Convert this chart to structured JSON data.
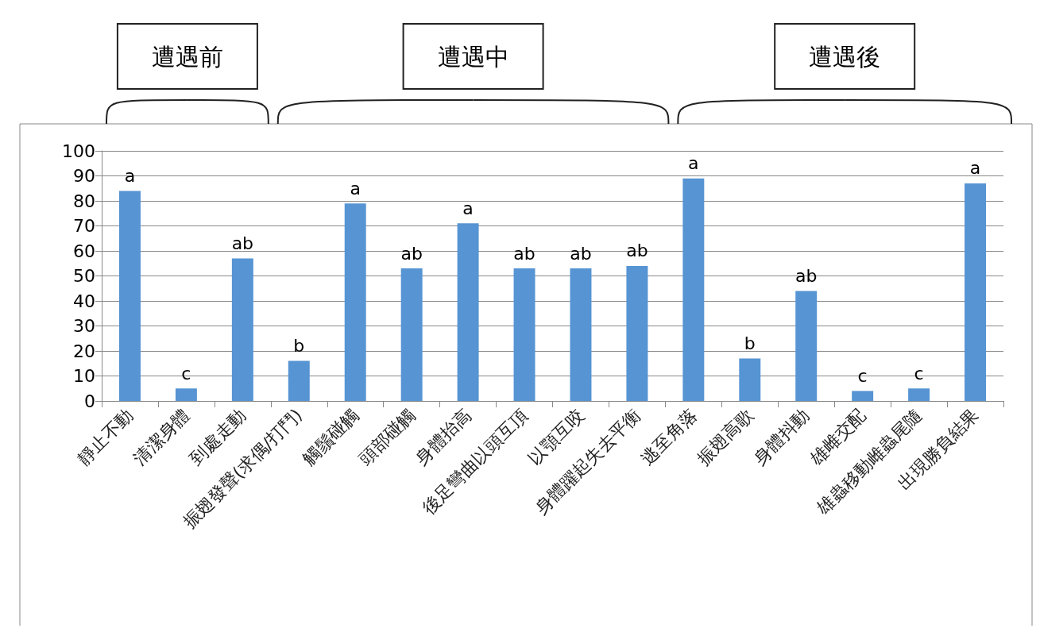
{
  "chart_data": {
    "type": "bar",
    "categories": [
      "靜止不動",
      "清潔身體",
      "到處走動",
      "振翅發聲(求偶/打鬥)",
      "觸鬚碰觸",
      "頭部碰觸",
      "身體抬高",
      "後足彎曲以頭互頂",
      "以顎互咬",
      "身體躍起失去平衡",
      "逃至角落",
      "振翅高歌",
      "身體抖動",
      "雄雌交配",
      "雄蟲移動雌蟲尾隨",
      "出現勝負結果"
    ],
    "values": [
      84,
      5,
      57,
      16,
      79,
      53,
      71,
      53,
      53,
      54,
      89,
      17,
      44,
      4,
      5,
      87
    ],
    "value_labels": [
      "a",
      "c",
      "ab",
      "b",
      "a",
      "ab",
      "a",
      "ab",
      "ab",
      "ab",
      "a",
      "b",
      "ab",
      "c",
      "c",
      "a"
    ],
    "color": "#5694d3",
    "ylim": [
      0,
      100
    ],
    "yticks": [
      0,
      10,
      20,
      30,
      40,
      50,
      60,
      70,
      80,
      90,
      100
    ],
    "grid": "y",
    "annotations": [
      "遭遇前",
      "遭遇中",
      "遭遇後"
    ]
  }
}
